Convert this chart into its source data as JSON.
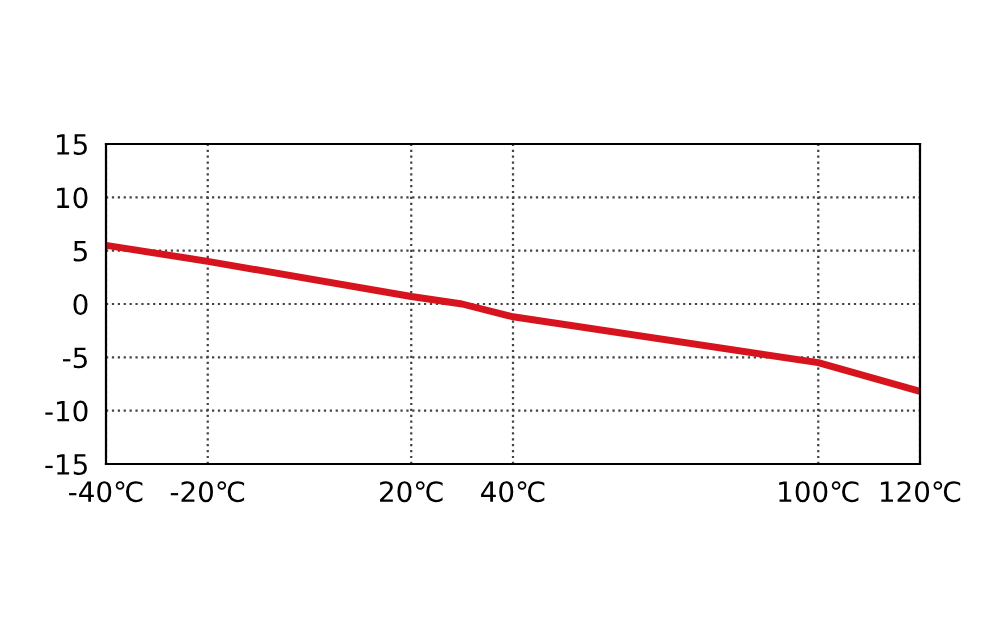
{
  "chart_data": {
    "type": "line",
    "x": [
      -40,
      -20,
      20,
      30,
      40,
      100,
      120
    ],
    "series": [
      {
        "color": "#d7141e",
        "values": [
          5.5,
          4.0,
          0.7,
          0.0,
          -1.2,
          -5.5,
          -8.2
        ]
      }
    ],
    "xlim": [
      -40,
      120
    ],
    "xticks": [
      {
        "value": -40,
        "label": "-40℃"
      },
      {
        "value": -20,
        "label": "-20℃"
      },
      {
        "value": 20,
        "label": "20℃"
      },
      {
        "value": 40,
        "label": "40℃"
      },
      {
        "value": 100,
        "label": "100℃"
      },
      {
        "value": 120,
        "label": "120℃"
      }
    ],
    "ylim": [
      -15,
      15
    ],
    "yticks": [
      -15,
      -10,
      -5,
      0,
      5,
      10,
      15
    ],
    "grid": true,
    "line_style": "solid",
    "marker": "none",
    "legend": false
  }
}
